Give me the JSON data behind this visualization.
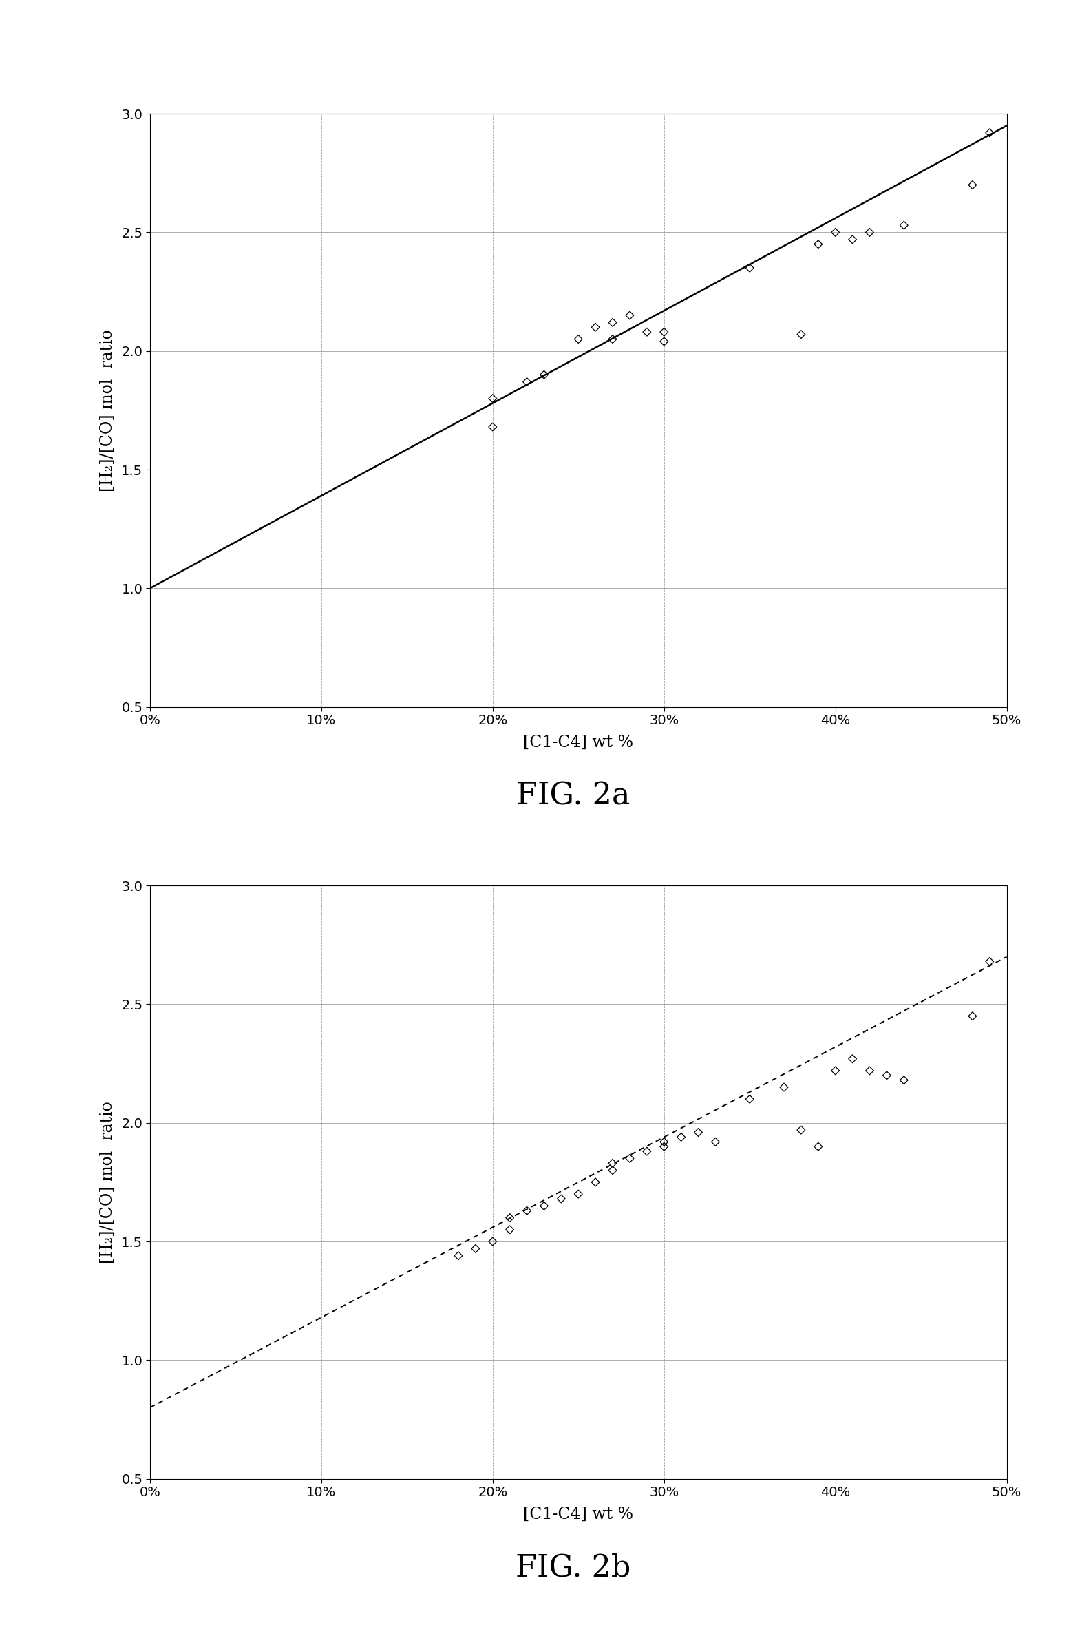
{
  "fig2a": {
    "title": "FIG. 2a",
    "xlabel": "[C1-C4] wt %",
    "ylabel": "[H₂]/[CO] mol  ratio",
    "xlim": [
      0,
      0.5
    ],
    "ylim": [
      0.5,
      3.0
    ],
    "yticks": [
      0.5,
      1.0,
      1.5,
      2.0,
      2.5,
      3.0
    ],
    "xticks": [
      0.0,
      0.1,
      0.2,
      0.3,
      0.4,
      0.5
    ],
    "line_x": [
      0.0,
      0.5
    ],
    "line_y": [
      1.0,
      2.95
    ],
    "line_style": "solid",
    "scatter_x": [
      0.2,
      0.2,
      0.22,
      0.23,
      0.25,
      0.26,
      0.27,
      0.27,
      0.28,
      0.29,
      0.3,
      0.3,
      0.35,
      0.38,
      0.39,
      0.4,
      0.41,
      0.42,
      0.44,
      0.48,
      0.49
    ],
    "scatter_y": [
      1.68,
      1.8,
      1.87,
      1.9,
      2.05,
      2.1,
      2.12,
      2.05,
      2.15,
      2.08,
      2.04,
      2.08,
      2.35,
      2.07,
      2.45,
      2.5,
      2.47,
      2.5,
      2.53,
      2.7,
      2.92
    ]
  },
  "fig2b": {
    "title": "FIG. 2b",
    "xlabel": "[C1-C4] wt %",
    "ylabel": "[H₂]/[CO] mol  ratio",
    "xlim": [
      0,
      0.5
    ],
    "ylim": [
      0.5,
      3.0
    ],
    "yticks": [
      0.5,
      1.0,
      1.5,
      2.0,
      2.5,
      3.0
    ],
    "xticks": [
      0.0,
      0.1,
      0.2,
      0.3,
      0.4,
      0.5
    ],
    "line_x": [
      0.0,
      0.5
    ],
    "line_y": [
      0.8,
      2.7
    ],
    "line_style": "dashed",
    "scatter_x": [
      0.18,
      0.19,
      0.2,
      0.21,
      0.21,
      0.22,
      0.23,
      0.24,
      0.25,
      0.26,
      0.27,
      0.27,
      0.28,
      0.29,
      0.3,
      0.3,
      0.31,
      0.32,
      0.33,
      0.35,
      0.37,
      0.38,
      0.39,
      0.4,
      0.41,
      0.42,
      0.43,
      0.44,
      0.48,
      0.49
    ],
    "scatter_y": [
      1.44,
      1.47,
      1.5,
      1.55,
      1.6,
      1.63,
      1.65,
      1.68,
      1.7,
      1.75,
      1.8,
      1.83,
      1.85,
      1.88,
      1.9,
      1.92,
      1.94,
      1.96,
      1.92,
      2.1,
      2.15,
      1.97,
      1.9,
      2.22,
      2.27,
      2.22,
      2.2,
      2.18,
      2.45,
      2.68
    ]
  },
  "background_color": "#ffffff",
  "scatter_color": "#000000",
  "line_color": "#000000",
  "marker": "D",
  "marker_size": 6,
  "title_fontsize": 32,
  "label_fontsize": 17,
  "tick_fontsize": 14
}
